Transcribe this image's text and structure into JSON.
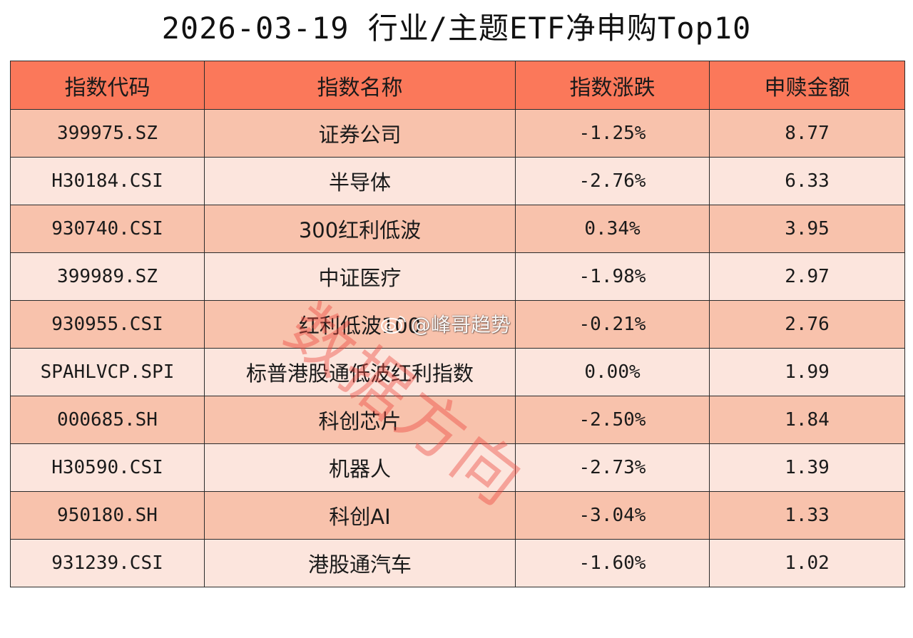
{
  "title": "2026-03-19 行业/主题ETF净申购Top10",
  "colors": {
    "header_bg": "#fb785a",
    "row_odd_bg": "#f8c2ac",
    "row_even_bg": "#fce5dd",
    "border": "#2b2b2b",
    "watermark": "#ec463c"
  },
  "table": {
    "headers": [
      "指数代码",
      "指数名称",
      "指数涨跌",
      "申赎金额"
    ],
    "rows": [
      [
        "399975.SZ",
        "证券公司",
        "-1.25%",
        "8.77"
      ],
      [
        "H30184.CSI",
        "半导体",
        "-2.76%",
        "6.33"
      ],
      [
        "930740.CSI",
        "300红利低波",
        "0.34%",
        "3.95"
      ],
      [
        "399989.SZ",
        "中证医疗",
        "-1.98%",
        "2.97"
      ],
      [
        "930955.CSI",
        "红利低波100",
        "-0.21%",
        "2.76"
      ],
      [
        "SPAHLVCP.SPI",
        "标普港股通低波红利指数",
        "0.00%",
        "1.99"
      ],
      [
        "000685.SH",
        "科创芯片",
        "-2.50%",
        "1.84"
      ],
      [
        "H30590.CSI",
        "机器人",
        "-2.73%",
        "1.39"
      ],
      [
        "950180.SH",
        "科创AI",
        "-3.04%",
        "1.33"
      ],
      [
        "931239.CSI",
        "港股通汽车",
        "-1.60%",
        "1.02"
      ]
    ]
  },
  "watermark": {
    "text": "数据方向",
    "weibo_handle": "@峰哥趋势",
    "weibo_icon": "weibo-logo-icon"
  }
}
